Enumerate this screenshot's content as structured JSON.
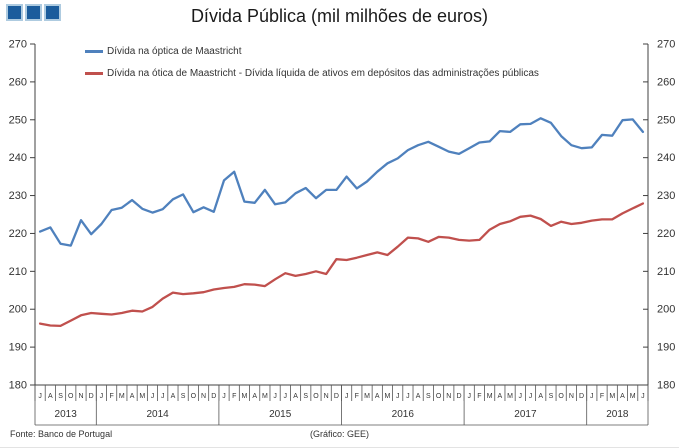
{
  "title": "Dívida Pública (mil milhões de euros)",
  "logo": {
    "squares": 3,
    "color": "#1B5C9C",
    "border_color": "#AECBE0"
  },
  "footer": {
    "source": "Fonte: Banco de Portugal",
    "credit": "(Gráfico: GEE)"
  },
  "chart_data": {
    "type": "line",
    "title": "Dívida Pública (mil milhões de euros)",
    "xlabel": "",
    "ylabel": "",
    "ylim": [
      180,
      270
    ],
    "y_step": 10,
    "y_axis_sides": "both",
    "grid": false,
    "legend_position": "top-left",
    "axis_color": "#404040",
    "x_groups": [
      {
        "year": "2013",
        "months": [
          "J",
          "A",
          "S",
          "O",
          "N",
          "D"
        ]
      },
      {
        "year": "2014",
        "months": [
          "J",
          "F",
          "M",
          "A",
          "M",
          "J",
          "J",
          "A",
          "S",
          "O",
          "N",
          "D"
        ]
      },
      {
        "year": "2015",
        "months": [
          "J",
          "F",
          "M",
          "A",
          "M",
          "J",
          "J",
          "A",
          "S",
          "O",
          "N",
          "D"
        ]
      },
      {
        "year": "2016",
        "months": [
          "J",
          "F",
          "M",
          "A",
          "M",
          "J",
          "J",
          "A",
          "S",
          "O",
          "N",
          "D"
        ]
      },
      {
        "year": "2017",
        "months": [
          "J",
          "F",
          "M",
          "A",
          "M",
          "J",
          "J",
          "A",
          "S",
          "O",
          "N",
          "D"
        ]
      },
      {
        "year": "2018",
        "months": [
          "J",
          "F",
          "M",
          "A",
          "M",
          "J"
        ]
      }
    ],
    "series": [
      {
        "name": "Dívida na óptica de Maastricht",
        "color": "#4F81BD",
        "values": [
          220.5,
          221.6,
          217.3,
          216.8,
          223.5,
          219.8,
          222.5,
          226.2,
          226.8,
          228.8,
          226.5,
          225.5,
          226.4,
          229.0,
          230.3,
          225.6,
          226.9,
          225.7,
          234.0,
          236.3,
          228.4,
          228.1,
          231.5,
          227.7,
          228.2,
          230.6,
          232.0,
          229.3,
          231.5,
          231.5,
          235.0,
          231.9,
          233.7,
          236.3,
          238.5,
          239.8,
          242.0,
          243.3,
          244.2,
          242.9,
          241.6,
          241.0,
          242.5,
          244.0,
          244.3,
          247.0,
          246.8,
          248.8,
          248.9,
          250.4,
          249.2,
          245.7,
          243.3,
          242.5,
          242.7,
          246.0,
          245.8,
          249.9,
          250.1,
          246.8
        ]
      },
      {
        "name": "Dívida na ótica de Maastricht - Dívida líquida de ativos em depósitos das administrações públicas",
        "color": "#C0504D",
        "values": [
          196.2,
          195.7,
          195.6,
          197.0,
          198.4,
          199.0,
          198.8,
          198.6,
          199.0,
          199.6,
          199.4,
          200.6,
          202.8,
          204.4,
          204.0,
          204.2,
          204.5,
          205.2,
          205.6,
          205.9,
          206.6,
          206.5,
          206.1,
          207.9,
          209.5,
          208.8,
          209.3,
          210.0,
          209.3,
          213.2,
          213.0,
          213.6,
          214.3,
          215.0,
          214.3,
          216.5,
          218.9,
          218.7,
          217.8,
          219.1,
          218.9,
          218.3,
          218.1,
          218.3,
          221.0,
          222.5,
          223.2,
          224.4,
          224.7,
          223.8,
          222.0,
          223.1,
          222.5,
          222.8,
          223.4,
          223.7,
          223.7,
          225.3,
          226.6,
          227.9
        ]
      }
    ]
  }
}
